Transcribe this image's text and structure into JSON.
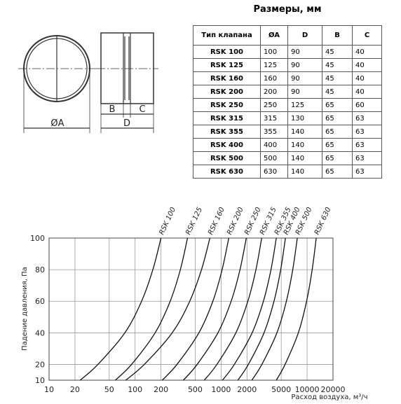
{
  "table": {
    "title": "Размеры, мм",
    "columns": [
      "Тип клапана",
      "ØA",
      "D",
      "B",
      "C"
    ],
    "rows": [
      [
        "RSK 100",
        100,
        90,
        45,
        40
      ],
      [
        "RSK 125",
        125,
        90,
        45,
        40
      ],
      [
        "RSK 160",
        160,
        90,
        45,
        40
      ],
      [
        "RSK 200",
        200,
        90,
        45,
        40
      ],
      [
        "RSK 250",
        250,
        125,
        65,
        60
      ],
      [
        "RSK 315",
        315,
        130,
        65,
        63
      ],
      [
        "RSK 355",
        355,
        140,
        65,
        63
      ],
      [
        "RSK 400",
        400,
        140,
        65,
        63
      ],
      [
        "RSK 500",
        500,
        140,
        65,
        63
      ],
      [
        "RSK 630",
        630,
        140,
        65,
        63
      ]
    ]
  },
  "drawing": {
    "diameter": "ØA",
    "b": "B",
    "c": "C",
    "d": "D"
  },
  "chart_data": {
    "type": "line",
    "ylabel": "Падение давления, Па",
    "xlabel": "Расход воздуха, м³/ч",
    "xscale": "log",
    "xlim": [
      10,
      20000
    ],
    "ylim": [
      10,
      100
    ],
    "xticks": [
      10,
      20,
      50,
      100,
      200,
      500,
      1000,
      2000,
      5000,
      10000,
      20000
    ],
    "yticks": [
      10,
      20,
      40,
      60,
      80,
      100
    ],
    "grid": true,
    "series": [
      {
        "name": "RSK 100",
        "color": "#111",
        "x": [
          23,
          37,
          76,
          119,
          161,
          200
        ],
        "values": [
          10,
          20,
          40,
          60,
          80,
          100
        ]
      },
      {
        "name": "RSK 125",
        "color": "#111",
        "x": [
          59,
          91,
          171,
          256,
          336,
          407
        ],
        "values": [
          10,
          20,
          40,
          60,
          80,
          100
        ]
      },
      {
        "name": "RSK 160",
        "color": "#111",
        "x": [
          78,
          128,
          270,
          432,
          592,
          741
        ],
        "values": [
          10,
          20,
          40,
          60,
          80,
          100
        ]
      },
      {
        "name": "RSK 200",
        "color": "#111",
        "x": [
          207,
          307,
          552,
          802,
          1028,
          1228
        ],
        "values": [
          10,
          20,
          40,
          60,
          80,
          100
        ]
      },
      {
        "name": "RSK 250",
        "color": "#111",
        "x": [
          364,
          527,
          919,
          1309,
          1659,
          1963
        ],
        "values": [
          10,
          20,
          40,
          60,
          80,
          100
        ]
      },
      {
        "name": "RSK 315",
        "color": "#111",
        "x": [
          638,
          894,
          1486,
          2047,
          2541,
          2963
        ],
        "values": [
          10,
          20,
          40,
          60,
          80,
          100
        ]
      },
      {
        "name": "RSK 355",
        "color": "#111",
        "x": [
          1038,
          1426,
          2296,
          3105,
          3802,
          4385
        ],
        "values": [
          10,
          20,
          40,
          60,
          80,
          100
        ]
      },
      {
        "name": "RSK 400",
        "color": "#111",
        "x": [
          1567,
          2075,
          3155,
          4121,
          4932,
          5598
        ],
        "values": [
          10,
          20,
          40,
          60,
          80,
          100
        ]
      },
      {
        "name": "RSK 500",
        "color": "#111",
        "x": [
          2280,
          2979,
          4455,
          5741,
          6808,
          7691
        ],
        "values": [
          10,
          20,
          40,
          60,
          80,
          100
        ]
      },
      {
        "name": "RSK 630",
        "color": "#111",
        "x": [
          4385,
          5546,
          7907,
          9863,
          11455,
          12764
        ],
        "values": [
          10,
          20,
          40,
          60,
          80,
          100
        ]
      }
    ]
  }
}
